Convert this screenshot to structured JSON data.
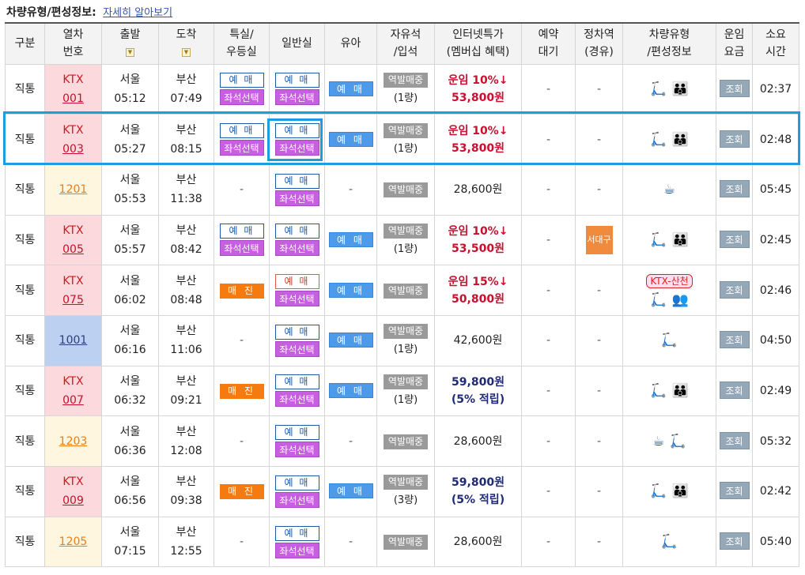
{
  "header": {
    "title": "차량유형/편성정보:",
    "link": "자세히 알아보기"
  },
  "columns": {
    "type": "구분",
    "train_l1": "열차",
    "train_l2": "번호",
    "dep": "출발",
    "arr": "도착",
    "special_l1": "특실/",
    "special_l2": "우등실",
    "general": "일반실",
    "child": "유아",
    "free_l1": "자유석",
    "free_l2": "/입석",
    "web_l1": "인터넷특가",
    "web_l2": "(멤버십 혜택)",
    "wait_l1": "예약",
    "wait_l2": "대기",
    "stop_l1": "정차역",
    "stop_l2": "(경유)",
    "car_l1": "차량유형",
    "car_l2": "/편성정보",
    "fare_l1": "운임",
    "fare_l2": "요금",
    "time_l1": "소요",
    "time_l2": "시간",
    "sort_icon": "▼"
  },
  "labels": {
    "yemae": "예 매",
    "seat": "좌석선택",
    "child_btn": "예 매",
    "maejin": "매 진",
    "station": "역발매중",
    "view": "조회",
    "dash": "-"
  },
  "rows": [
    {
      "type": "직통",
      "ktx": "KTX",
      "num": "001",
      "kind": "ktx",
      "dep_st": "서울",
      "dep_t": "05:12",
      "arr_st": "부산",
      "arr_t": "07:49",
      "special": "yemae",
      "general": "yemae",
      "child": true,
      "cars": "(1량)",
      "price1": "운임 10%↓",
      "price2": "53,800원",
      "pstyle": "red",
      "stop": "",
      "car_icons": "scooter,family",
      "badge": "",
      "duration": "02:37"
    },
    {
      "type": "직통",
      "ktx": "KTX",
      "num": "003",
      "kind": "ktx",
      "dep_st": "서울",
      "dep_t": "05:27",
      "arr_st": "부산",
      "arr_t": "08:15",
      "special": "yemae",
      "general": "yemae",
      "child": true,
      "cars": "(1량)",
      "price1": "운임 10%↓",
      "price2": "53,800원",
      "pstyle": "red",
      "stop": "",
      "car_icons": "scooter,family",
      "badge": "",
      "duration": "02:48"
    },
    {
      "type": "직통",
      "ktx": "",
      "num": "1201",
      "kind": "itx",
      "dep_st": "서울",
      "dep_t": "05:53",
      "arr_st": "부산",
      "arr_t": "11:38",
      "special": "dash",
      "general": "yemae",
      "child": false,
      "cars": "",
      "price1": "",
      "price2": "28,600원",
      "pstyle": "plain",
      "stop": "",
      "car_icons": "cafe",
      "badge": "",
      "duration": "05:45"
    },
    {
      "type": "직통",
      "ktx": "KTX",
      "num": "005",
      "kind": "ktx",
      "dep_st": "서울",
      "dep_t": "05:57",
      "arr_st": "부산",
      "arr_t": "08:42",
      "special": "yemae",
      "general": "yemae",
      "child": true,
      "cars": "(1량)",
      "price1": "운임 10%↓",
      "price2": "53,500원",
      "pstyle": "red",
      "stop": "서대구",
      "car_icons": "scooter,family",
      "badge": "",
      "duration": "02:45"
    },
    {
      "type": "직통",
      "ktx": "KTX",
      "num": "075",
      "kind": "ktx",
      "dep_st": "서울",
      "dep_t": "06:02",
      "arr_st": "부산",
      "arr_t": "08:48",
      "special": "maejin",
      "general": "yemae-red",
      "child": true,
      "cars": "",
      "price1": "운임 15%↓",
      "price2": "50,800원",
      "pstyle": "red",
      "stop": "",
      "car_icons": "scooter,meeting",
      "badge": "KTX-산천",
      "duration": "02:46"
    },
    {
      "type": "직통",
      "ktx": "",
      "num": "1001",
      "kind": "mug",
      "dep_st": "서울",
      "dep_t": "06:16",
      "arr_st": "부산",
      "arr_t": "11:06",
      "special": "dash",
      "general": "yemae",
      "child": true,
      "cars": "(1량)",
      "price1": "",
      "price2": "42,600원",
      "pstyle": "plain",
      "stop": "",
      "car_icons": "scooter",
      "badge": "",
      "duration": "04:50"
    },
    {
      "type": "직통",
      "ktx": "KTX",
      "num": "007",
      "kind": "ktx",
      "dep_st": "서울",
      "dep_t": "06:32",
      "arr_st": "부산",
      "arr_t": "09:21",
      "special": "maejin",
      "general": "yemae",
      "child": true,
      "cars": "(1량)",
      "price1": "59,800원",
      "price2": "(5% 적립)",
      "pstyle": "navy",
      "stop": "",
      "car_icons": "scooter,family",
      "badge": "",
      "duration": "02:49"
    },
    {
      "type": "직통",
      "ktx": "",
      "num": "1203",
      "kind": "itx",
      "dep_st": "서울",
      "dep_t": "06:36",
      "arr_st": "부산",
      "arr_t": "12:08",
      "special": "dash",
      "general": "yemae",
      "child": false,
      "cars": "",
      "price1": "",
      "price2": "28,600원",
      "pstyle": "plain",
      "stop": "",
      "car_icons": "cafe,scooter",
      "badge": "",
      "duration": "05:32"
    },
    {
      "type": "직통",
      "ktx": "KTX",
      "num": "009",
      "kind": "ktx",
      "dep_st": "서울",
      "dep_t": "06:56",
      "arr_st": "부산",
      "arr_t": "09:38",
      "special": "maejin",
      "general": "yemae",
      "child": true,
      "cars": "(3량)",
      "price1": "59,800원",
      "price2": "(5% 적립)",
      "pstyle": "navy",
      "stop": "",
      "car_icons": "scooter,family",
      "badge": "",
      "duration": "02:42"
    },
    {
      "type": "직통",
      "ktx": "",
      "num": "1205",
      "kind": "itx",
      "dep_st": "서울",
      "dep_t": "07:15",
      "arr_st": "부산",
      "arr_t": "12:55",
      "special": "dash",
      "general": "yemae",
      "child": false,
      "cars": "",
      "price1": "",
      "price2": "28,600원",
      "pstyle": "plain",
      "stop": "",
      "car_icons": "scooter",
      "badge": "",
      "duration": "05:40"
    }
  ],
  "icons": {
    "scooter": "🛴",
    "family": "👪",
    "cafe": "☕",
    "meeting": "👥"
  },
  "colors": {
    "ktx_bg": "#fbd9dc",
    "itx_bg": "#fff6e0",
    "mugunghwa_bg": "#bcd0f2",
    "highlight": "#1e9ce0"
  }
}
